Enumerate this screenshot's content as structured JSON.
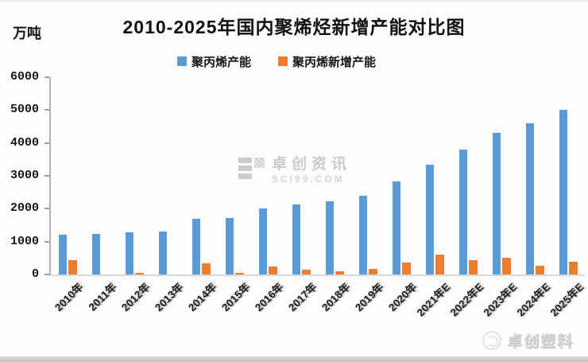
{
  "watermarks": {
    "center_name": "卓创资讯",
    "center_url": "SCI99.COM",
    "corner_name": "卓创塑料"
  },
  "colors": {
    "capacity_blue": "#5B9BD5",
    "new_capacity_orange": "#ED7D31"
  },
  "chart_data": {
    "type": "bar",
    "title": "2010-2025年国内聚烯烃新增产能对比图",
    "ylabel": "万吨",
    "xlabel": "",
    "categories": [
      "2010年",
      "2011年",
      "2012年",
      "2013年",
      "2014年",
      "2015年",
      "2016年",
      "2017年",
      "2018年",
      "2019年",
      "2020年",
      "2021年E",
      "2022年E",
      "2023年E",
      "2024年E",
      "2025年E"
    ],
    "series": [
      {
        "name": "聚丙烯产能",
        "color": "#5B9BD5",
        "values": [
          1200,
          1230,
          1280,
          1300,
          1700,
          1730,
          2000,
          2120,
          2230,
          2400,
          2830,
          3350,
          3800,
          4300,
          4600,
          5000
        ]
      },
      {
        "name": "聚丙烯新增产能",
        "color": "#ED7D31",
        "values": [
          430,
          0,
          50,
          0,
          340,
          50,
          240,
          140,
          90,
          180,
          370,
          600,
          440,
          510,
          270,
          390
        ]
      }
    ],
    "ylim": [
      0,
      6000
    ],
    "yticks": [
      0,
      1000,
      2000,
      3000,
      4000,
      5000,
      6000
    ],
    "grid": false,
    "legend_position": "top"
  }
}
